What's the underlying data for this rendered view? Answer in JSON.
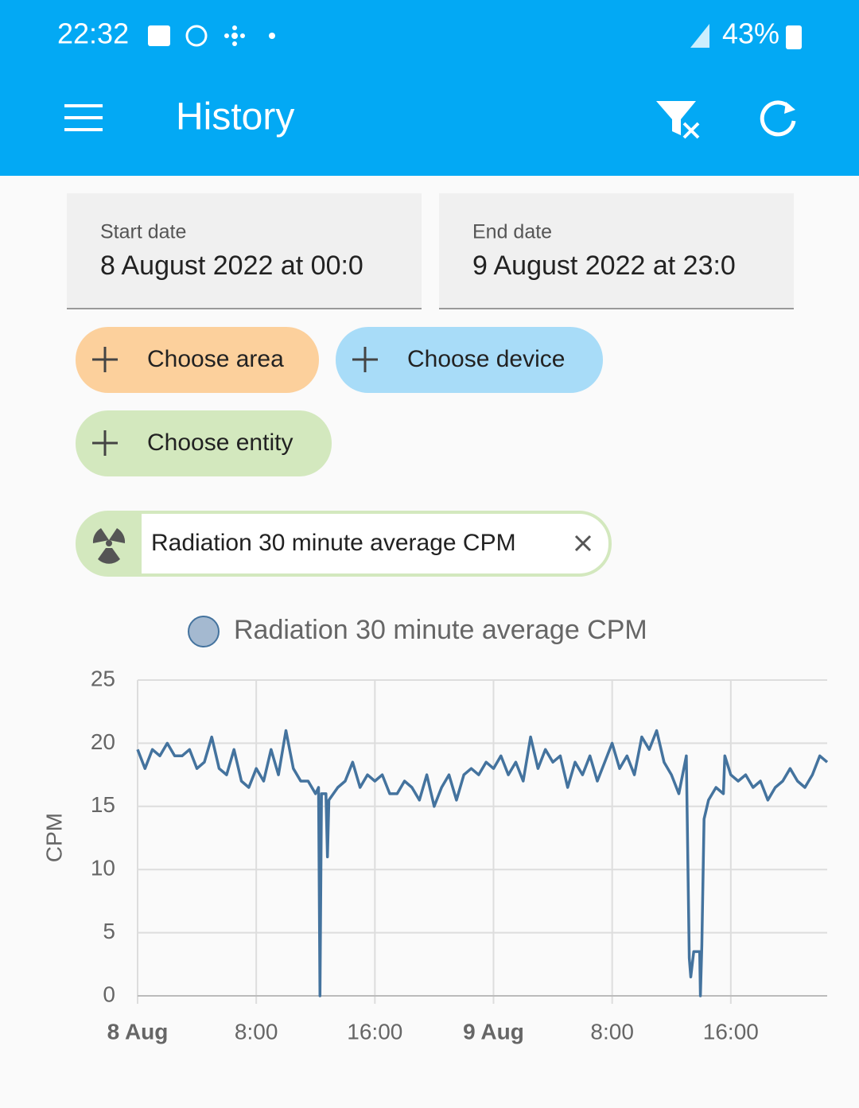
{
  "status_bar": {
    "time": "22:32",
    "battery": "43%"
  },
  "app_bar": {
    "title": "History"
  },
  "filters": {
    "start_label": "Start date",
    "start_value": "8 August 2022 at 00:0",
    "end_label": "End date",
    "end_value": "9 August 2022 at 23:0"
  },
  "chips": [
    "Choose area",
    "Choose device",
    "Choose entity"
  ],
  "selected_entity": "Radiation 30 minute average CPM",
  "chart_data": {
    "type": "line",
    "y_label": "CPM",
    "x": [
      0,
      0.5,
      1,
      1.5,
      2,
      2.5,
      3,
      3.5,
      4,
      4.5,
      5,
      5.5,
      6,
      6.5,
      7,
      7.5,
      8,
      8.5,
      9,
      9.5,
      10,
      10.5,
      11,
      11.5,
      12,
      12.2,
      12.3,
      12.4,
      12.7,
      12.8,
      12.9,
      13.5,
      14,
      14.5,
      15,
      15.5,
      16,
      16.5,
      17,
      17.5,
      18,
      18.5,
      19,
      19.5,
      20,
      20.5,
      21,
      21.5,
      22,
      22.5,
      23,
      23.5,
      24,
      24.5,
      25,
      25.5,
      26,
      26.5,
      27,
      27.5,
      28,
      28.5,
      29,
      29.5,
      30,
      30.5,
      31,
      31.5,
      32,
      32.5,
      33,
      33.5,
      34,
      34.5,
      35,
      35.5,
      36,
      36.5,
      37,
      37.2,
      37.3,
      37.5,
      37.9,
      37.95,
      38.05,
      38.2,
      38.5,
      39,
      39.5,
      39.6,
      40,
      40.5,
      41,
      41.5,
      42,
      42.5,
      43,
      43.5,
      44,
      44.5,
      45,
      45.5,
      46,
      46.5
    ],
    "series": [
      {
        "name": "Radiation 30 minute average CPM",
        "color": "#44739e",
        "values": [
          19.5,
          18,
          19.5,
          19,
          20,
          19,
          19,
          19.5,
          18,
          18.5,
          20.5,
          18,
          17.5,
          19.5,
          17,
          16.5,
          18,
          17,
          19.5,
          17.5,
          21,
          18,
          17,
          17,
          16,
          16.5,
          0,
          16,
          16,
          11,
          15.5,
          16.5,
          17,
          18.5,
          16.5,
          17.5,
          17,
          17.5,
          16,
          16,
          17,
          16.5,
          15.5,
          17.5,
          15,
          16.5,
          17.5,
          15.5,
          17.5,
          18,
          17.5,
          18.5,
          18,
          19,
          17.5,
          18.5,
          17,
          20.5,
          18,
          19.5,
          18.5,
          19,
          16.5,
          18.5,
          17.5,
          19,
          17,
          18.5,
          20,
          18,
          19,
          17.5,
          20.5,
          19.5,
          21,
          18.5,
          17.5,
          16,
          19,
          3,
          1.5,
          3.5,
          3.5,
          0,
          4,
          14,
          15.5,
          16.5,
          16,
          19,
          17.5,
          17,
          17.5,
          16.5,
          17,
          15.5,
          16.5,
          17,
          18,
          17,
          16.5,
          17.5,
          19,
          18.5
        ]
      }
    ],
    "xlim": [
      0,
      46.5
    ],
    "ylim": [
      0,
      25
    ],
    "xticks": [
      {
        "value": 0,
        "label": "8 Aug"
      },
      {
        "value": 8,
        "label": "8:00"
      },
      {
        "value": 16,
        "label": "16:00"
      },
      {
        "value": 24,
        "label": "9 Aug"
      },
      {
        "value": 32,
        "label": "8:00"
      },
      {
        "value": 40,
        "label": "16:00"
      }
    ],
    "yticks": [
      0,
      5,
      10,
      15,
      20,
      25
    ],
    "grid": true
  }
}
